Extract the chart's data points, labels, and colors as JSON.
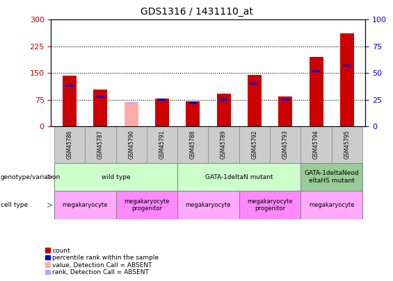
{
  "title": "GDS1316 / 1431110_at",
  "samples": [
    "GSM45786",
    "GSM45787",
    "GSM45790",
    "GSM45791",
    "GSM45788",
    "GSM45789",
    "GSM45792",
    "GSM45793",
    "GSM45794",
    "GSM45795"
  ],
  "count_values": [
    142,
    103,
    0,
    78,
    70,
    93,
    145,
    85,
    195,
    262
  ],
  "absent_value_bars": [
    0,
    0,
    68,
    0,
    0,
    0,
    0,
    0,
    0,
    0
  ],
  "percentile_rank": [
    38,
    28,
    0,
    25,
    22,
    25,
    40,
    25,
    52,
    57
  ],
  "absent_rank_bars": [
    0,
    0,
    22,
    0,
    0,
    0,
    0,
    0,
    0,
    0
  ],
  "detection_absent": [
    false,
    false,
    true,
    false,
    false,
    false,
    false,
    false,
    false,
    false
  ],
  "left_ylim": [
    0,
    300
  ],
  "right_ylim": [
    0,
    100
  ],
  "left_yticks": [
    0,
    75,
    150,
    225,
    300
  ],
  "right_yticks": [
    0,
    25,
    50,
    75,
    100
  ],
  "left_ylabel_color": "#cc0000",
  "right_ylabel_color": "#0000cc",
  "bar_color_red": "#cc0000",
  "bar_color_blue": "#0000cc",
  "bar_color_pink": "#ffaaaa",
  "bar_color_light_blue": "#aaaaff",
  "genotype_groups": [
    {
      "label": "wild type",
      "start": 0,
      "end": 3,
      "color": "#ccffcc"
    },
    {
      "label": "GATA-1deltaN mutant",
      "start": 4,
      "end": 7,
      "color": "#ccffcc"
    },
    {
      "label": "GATA-1deltaNeod\neltaHS mutant",
      "start": 8,
      "end": 9,
      "color": "#99cc99"
    }
  ],
  "cell_type_groups": [
    {
      "label": "megakaryocyte",
      "start": 0,
      "end": 1,
      "color": "#ffaaff"
    },
    {
      "label": "megakaryocyte\nprogenitor",
      "start": 2,
      "end": 3,
      "color": "#ff88ff"
    },
    {
      "label": "megakaryocyte",
      "start": 4,
      "end": 5,
      "color": "#ffaaff"
    },
    {
      "label": "megakaryocyte\nprogenitor",
      "start": 6,
      "end": 7,
      "color": "#ff88ff"
    },
    {
      "label": "megakaryocyte",
      "start": 8,
      "end": 9,
      "color": "#ffaaff"
    }
  ],
  "legend_items": [
    {
      "label": "count",
      "color": "#cc0000"
    },
    {
      "label": "percentile rank within the sample",
      "color": "#0000cc"
    },
    {
      "label": "value, Detection Call = ABSENT",
      "color": "#ffaaaa"
    },
    {
      "label": "rank, Detection Call = ABSENT",
      "color": "#aaaaff"
    }
  ]
}
